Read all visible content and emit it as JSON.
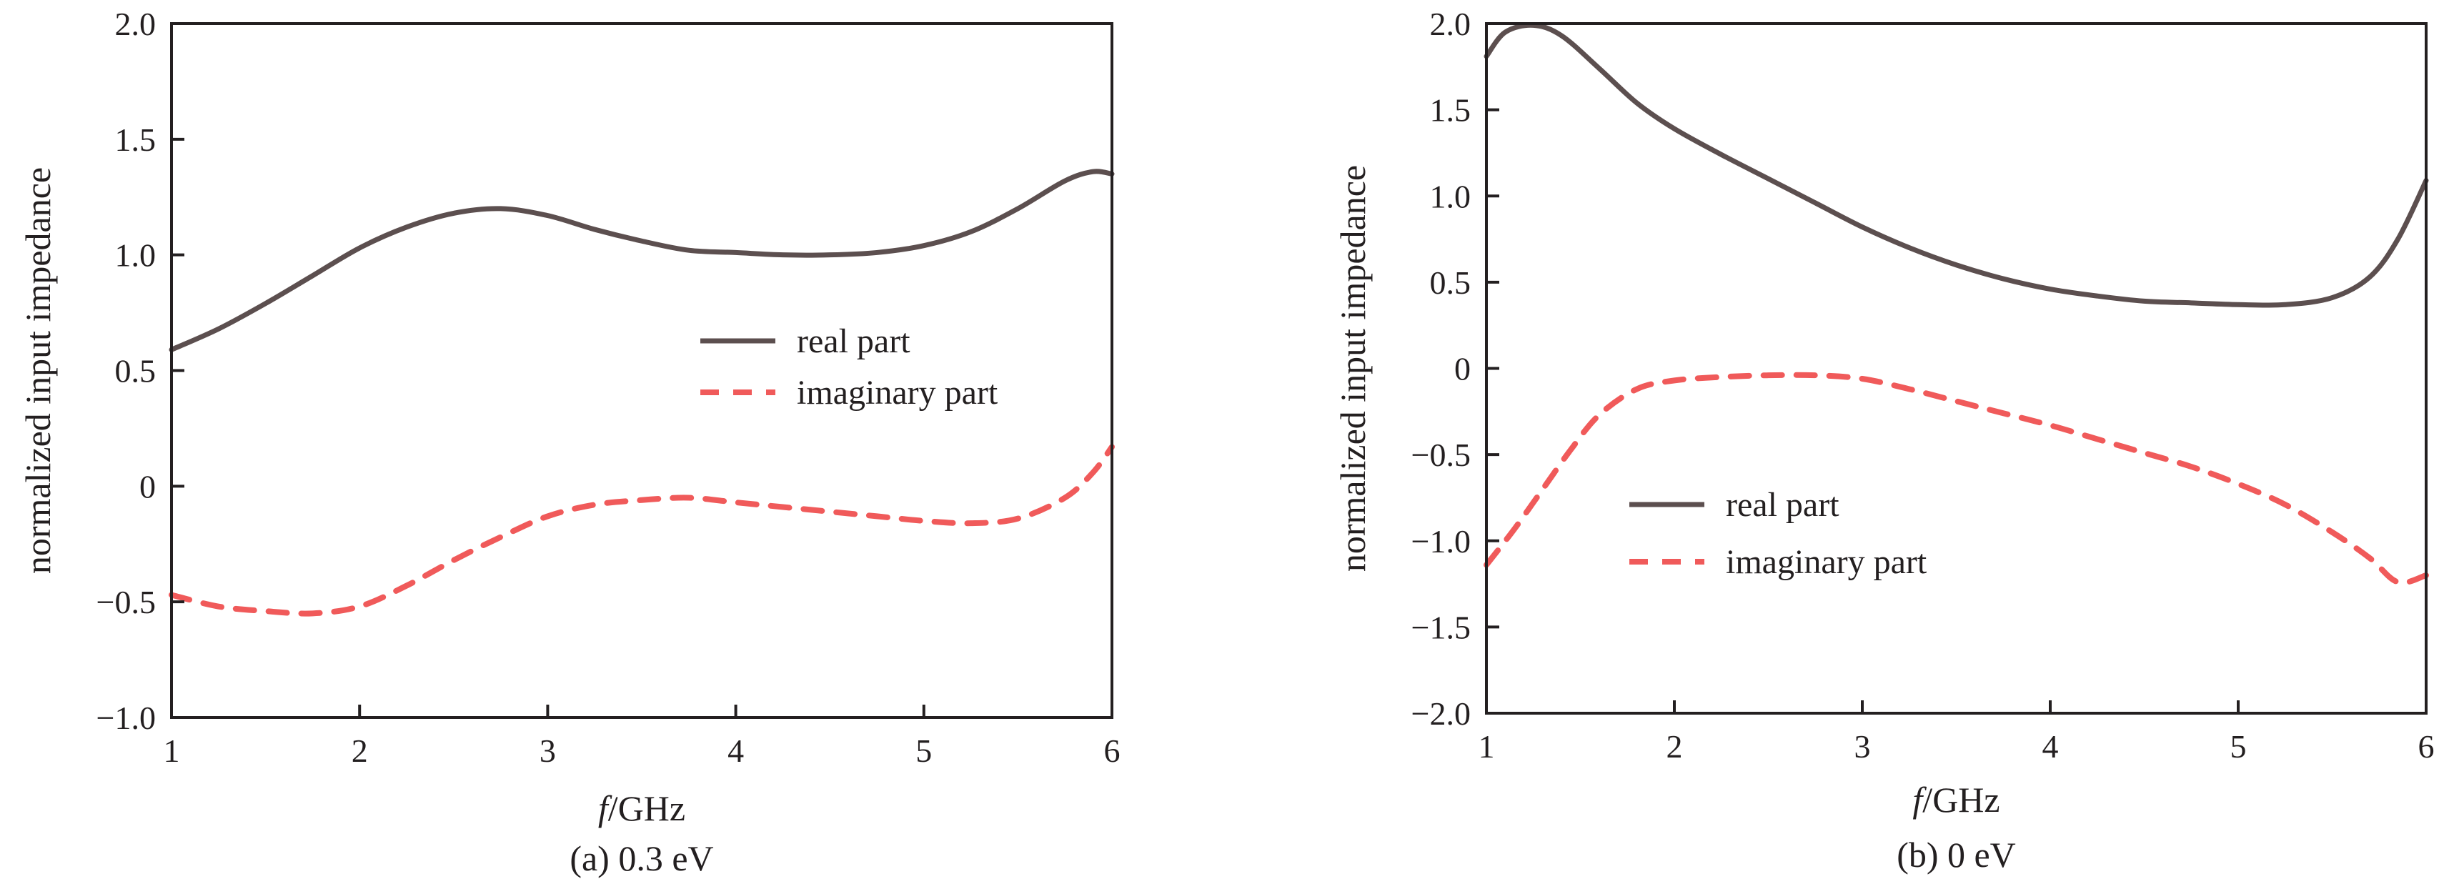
{
  "chart_data": [
    {
      "type": "line",
      "caption": "(a) 0.3 eV",
      "xlabel_italic": "f",
      "xlabel_rest": "/GHz",
      "ylabel": "normalized input impedance",
      "xlim": [
        1,
        6
      ],
      "ylim": [
        -1.0,
        2.0
      ],
      "xticks": [
        1,
        2,
        3,
        4,
        5,
        6
      ],
      "xtick_labels": [
        "1",
        "2",
        "3",
        "4",
        "5",
        "6"
      ],
      "yticks": [
        -1.0,
        -0.5,
        0,
        0.5,
        1.0,
        1.5,
        2.0
      ],
      "ytick_labels": [
        "−1.0",
        "−0.5",
        "0",
        "0.5",
        "1.0",
        "1.5",
        "2.0"
      ],
      "grid": false,
      "legend_position": "center-right",
      "series": [
        {
          "name": "real part",
          "style": "solid",
          "color": "#5c4f4f",
          "x": [
            1.0,
            1.25,
            1.5,
            1.75,
            2.0,
            2.25,
            2.5,
            2.75,
            3.0,
            3.25,
            3.5,
            3.75,
            4.0,
            4.25,
            4.5,
            4.75,
            5.0,
            5.25,
            5.5,
            5.75,
            5.9,
            6.0
          ],
          "y": [
            0.59,
            0.68,
            0.79,
            0.91,
            1.03,
            1.12,
            1.18,
            1.2,
            1.17,
            1.11,
            1.06,
            1.02,
            1.01,
            1.0,
            1.0,
            1.01,
            1.04,
            1.1,
            1.2,
            1.32,
            1.36,
            1.35
          ]
        },
        {
          "name": "imaginary part",
          "style": "dashed",
          "color": "#f05a5a",
          "x": [
            1.0,
            1.25,
            1.5,
            1.75,
            2.0,
            2.25,
            2.5,
            2.75,
            3.0,
            3.25,
            3.5,
            3.75,
            4.0,
            4.25,
            4.5,
            4.75,
            5.0,
            5.25,
            5.5,
            5.75,
            5.9,
            6.0
          ],
          "y": [
            -0.47,
            -0.52,
            -0.54,
            -0.55,
            -0.52,
            -0.43,
            -0.32,
            -0.22,
            -0.13,
            -0.08,
            -0.06,
            -0.05,
            -0.07,
            -0.09,
            -0.11,
            -0.13,
            -0.15,
            -0.16,
            -0.14,
            -0.05,
            0.06,
            0.17
          ]
        }
      ]
    },
    {
      "type": "line",
      "caption": "(b) 0 eV",
      "xlabel_italic": "f",
      "xlabel_rest": "/GHz",
      "ylabel": "normalized input impedance",
      "xlim": [
        1,
        6
      ],
      "ylim": [
        -2.0,
        2.0
      ],
      "xticks": [
        1,
        2,
        3,
        4,
        5,
        6
      ],
      "xtick_labels": [
        "1",
        "2",
        "3",
        "4",
        "5",
        "6"
      ],
      "yticks": [
        -2.0,
        -1.5,
        -1.0,
        -0.5,
        0,
        0.5,
        1.0,
        1.5,
        2.0
      ],
      "ytick_labels": [
        "−2.0",
        "−1.5",
        "−1.0",
        "−0.5",
        "0",
        "0.5",
        "1.0",
        "1.5",
        "2.0"
      ],
      "grid": false,
      "legend_position": "center-left",
      "series": [
        {
          "name": "real part",
          "style": "solid",
          "color": "#5c4f4f",
          "x": [
            1.0,
            1.1,
            1.25,
            1.4,
            1.6,
            1.8,
            2.0,
            2.25,
            2.5,
            2.75,
            3.0,
            3.25,
            3.5,
            3.75,
            4.0,
            4.25,
            4.5,
            4.75,
            5.0,
            5.25,
            5.5,
            5.7,
            5.85,
            6.0
          ],
          "y": [
            1.81,
            1.95,
            1.99,
            1.93,
            1.74,
            1.54,
            1.39,
            1.24,
            1.1,
            0.96,
            0.82,
            0.7,
            0.6,
            0.52,
            0.46,
            0.42,
            0.39,
            0.38,
            0.37,
            0.37,
            0.41,
            0.53,
            0.75,
            1.09
          ]
        },
        {
          "name": "imaginary part",
          "style": "dashed",
          "color": "#f05a5a",
          "x": [
            1.0,
            1.15,
            1.3,
            1.45,
            1.6,
            1.8,
            2.0,
            2.25,
            2.5,
            2.75,
            3.0,
            3.25,
            3.5,
            3.75,
            4.0,
            4.25,
            4.5,
            4.75,
            5.0,
            5.25,
            5.5,
            5.7,
            5.85,
            6.0
          ],
          "y": [
            -1.14,
            -0.93,
            -0.7,
            -0.47,
            -0.27,
            -0.12,
            -0.07,
            -0.05,
            -0.04,
            -0.04,
            -0.06,
            -0.12,
            -0.19,
            -0.26,
            -0.33,
            -0.41,
            -0.49,
            -0.57,
            -0.67,
            -0.79,
            -0.95,
            -1.1,
            -1.24,
            -1.2
          ]
        }
      ]
    }
  ]
}
